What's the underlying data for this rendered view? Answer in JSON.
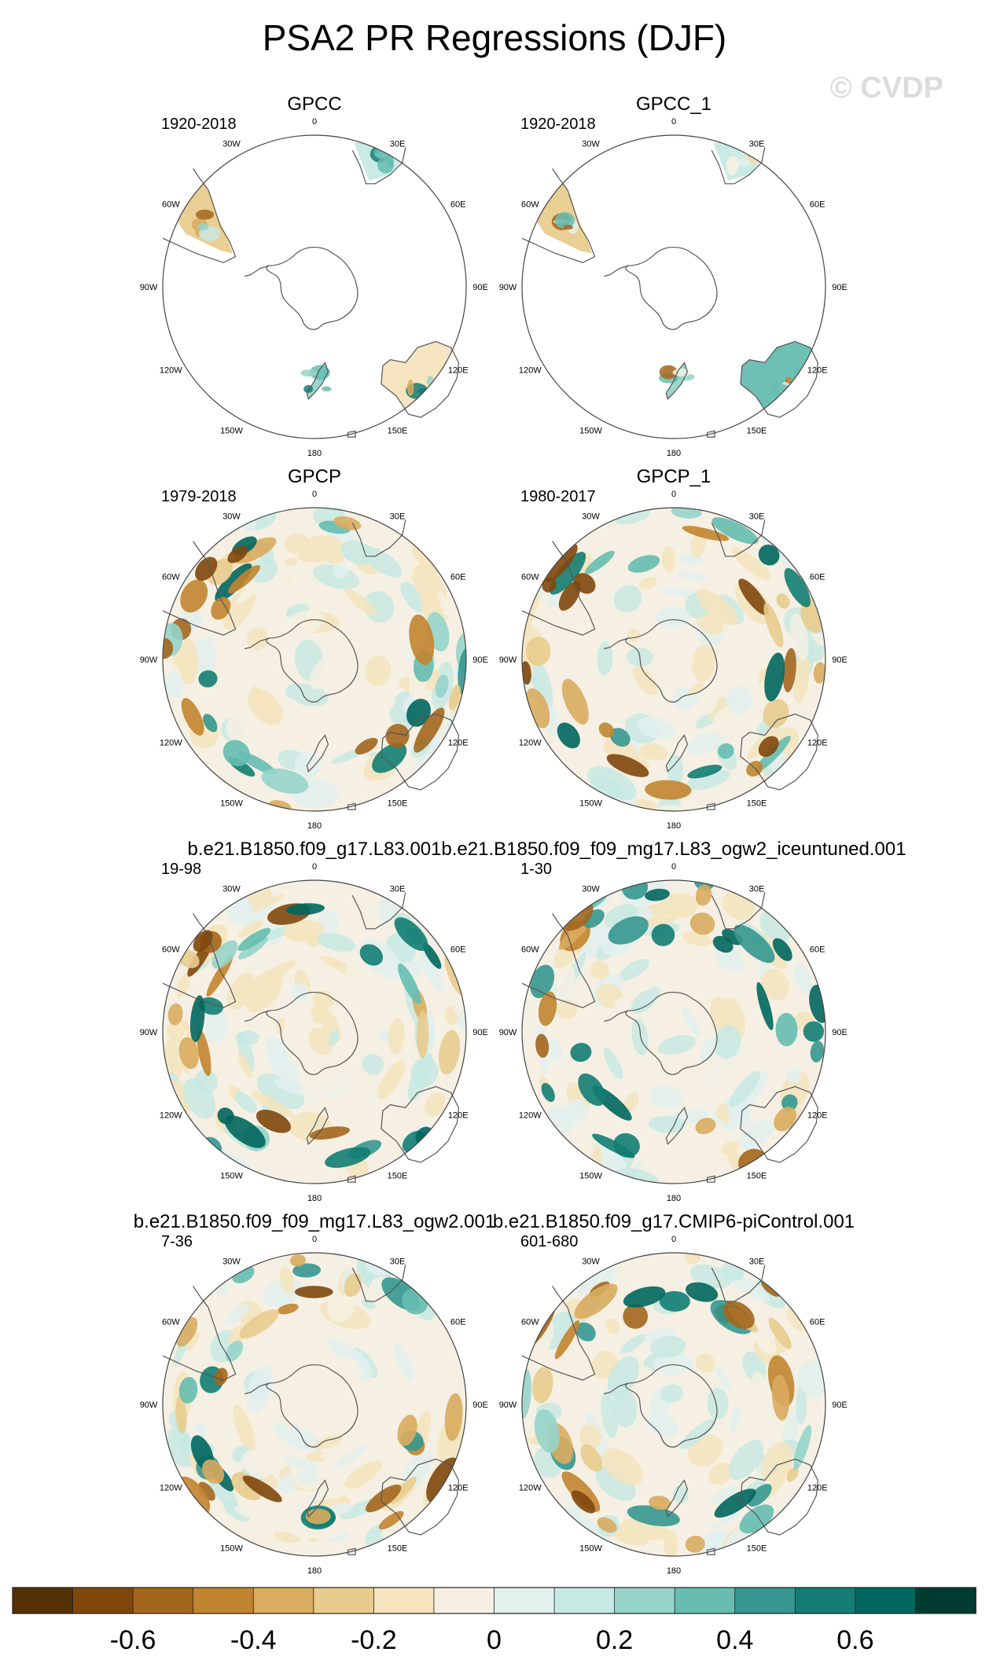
{
  "title": "PSA2 PR Regressions (DJF)",
  "watermark": "© CVDP",
  "lon_labels": [
    "0",
    "30E",
    "60E",
    "90E",
    "120E",
    "150E",
    "180",
    "150W",
    "120W",
    "90W",
    "60W",
    "30W"
  ],
  "colorbar": {
    "ticks": [
      -0.6,
      -0.4,
      -0.2,
      0,
      0.2,
      0.4,
      0.6
    ],
    "tick_labels": [
      "-0.6",
      "-0.4",
      "-0.2",
      "0",
      "0.2",
      "0.4",
      "0.6"
    ],
    "levels": [
      -0.7,
      -0.6,
      -0.5,
      -0.4,
      -0.3,
      -0.2,
      -0.1,
      0,
      0.1,
      0.2,
      0.3,
      0.4,
      0.5,
      0.6,
      0.7
    ],
    "colors": [
      "#543005",
      "#7f470c",
      "#a3661d",
      "#c2842f",
      "#d9ac5f",
      "#e8cc8e",
      "#f5e4bd",
      "#f5f0e3",
      "#e2f0ee",
      "#c7e9e3",
      "#96d4ca",
      "#66bdb0",
      "#35978f",
      "#137d73",
      "#01665e",
      "#003c30"
    ]
  },
  "chart_data": [
    {
      "type": "heatmap",
      "title": "GPCC",
      "period": "1920-2018",
      "coverage": "land-only",
      "seed": 11
    },
    {
      "type": "heatmap",
      "title": "GPCC_1",
      "period": "1920-2018",
      "coverage": "land-only",
      "seed": 23
    },
    {
      "type": "heatmap",
      "title": "GPCP",
      "period": "1979-2018",
      "coverage": "global",
      "seed": 37
    },
    {
      "type": "heatmap",
      "title": "GPCP_1",
      "period": "1980-2017",
      "coverage": "global",
      "seed": 41
    },
    {
      "type": "heatmap",
      "title": "b.e21.B1850.f09_g17.L83.001",
      "period": "19-98",
      "coverage": "global",
      "seed": 53
    },
    {
      "type": "heatmap",
      "title": "b.e21.B1850.f09_f09_mg17.L83_ogw2_iceuntuned.001",
      "period": "1-30",
      "coverage": "global",
      "seed": 67
    },
    {
      "type": "heatmap",
      "title": "b.e21.B1850.f09_f09_mg17.L83_ogw2.001",
      "period": "7-36",
      "coverage": "global",
      "seed": 71
    },
    {
      "type": "heatmap",
      "title": "b.e21.B1850.f09_g17.CMIP6-piControl.001",
      "period": "601-680",
      "coverage": "global",
      "seed": 89
    }
  ]
}
